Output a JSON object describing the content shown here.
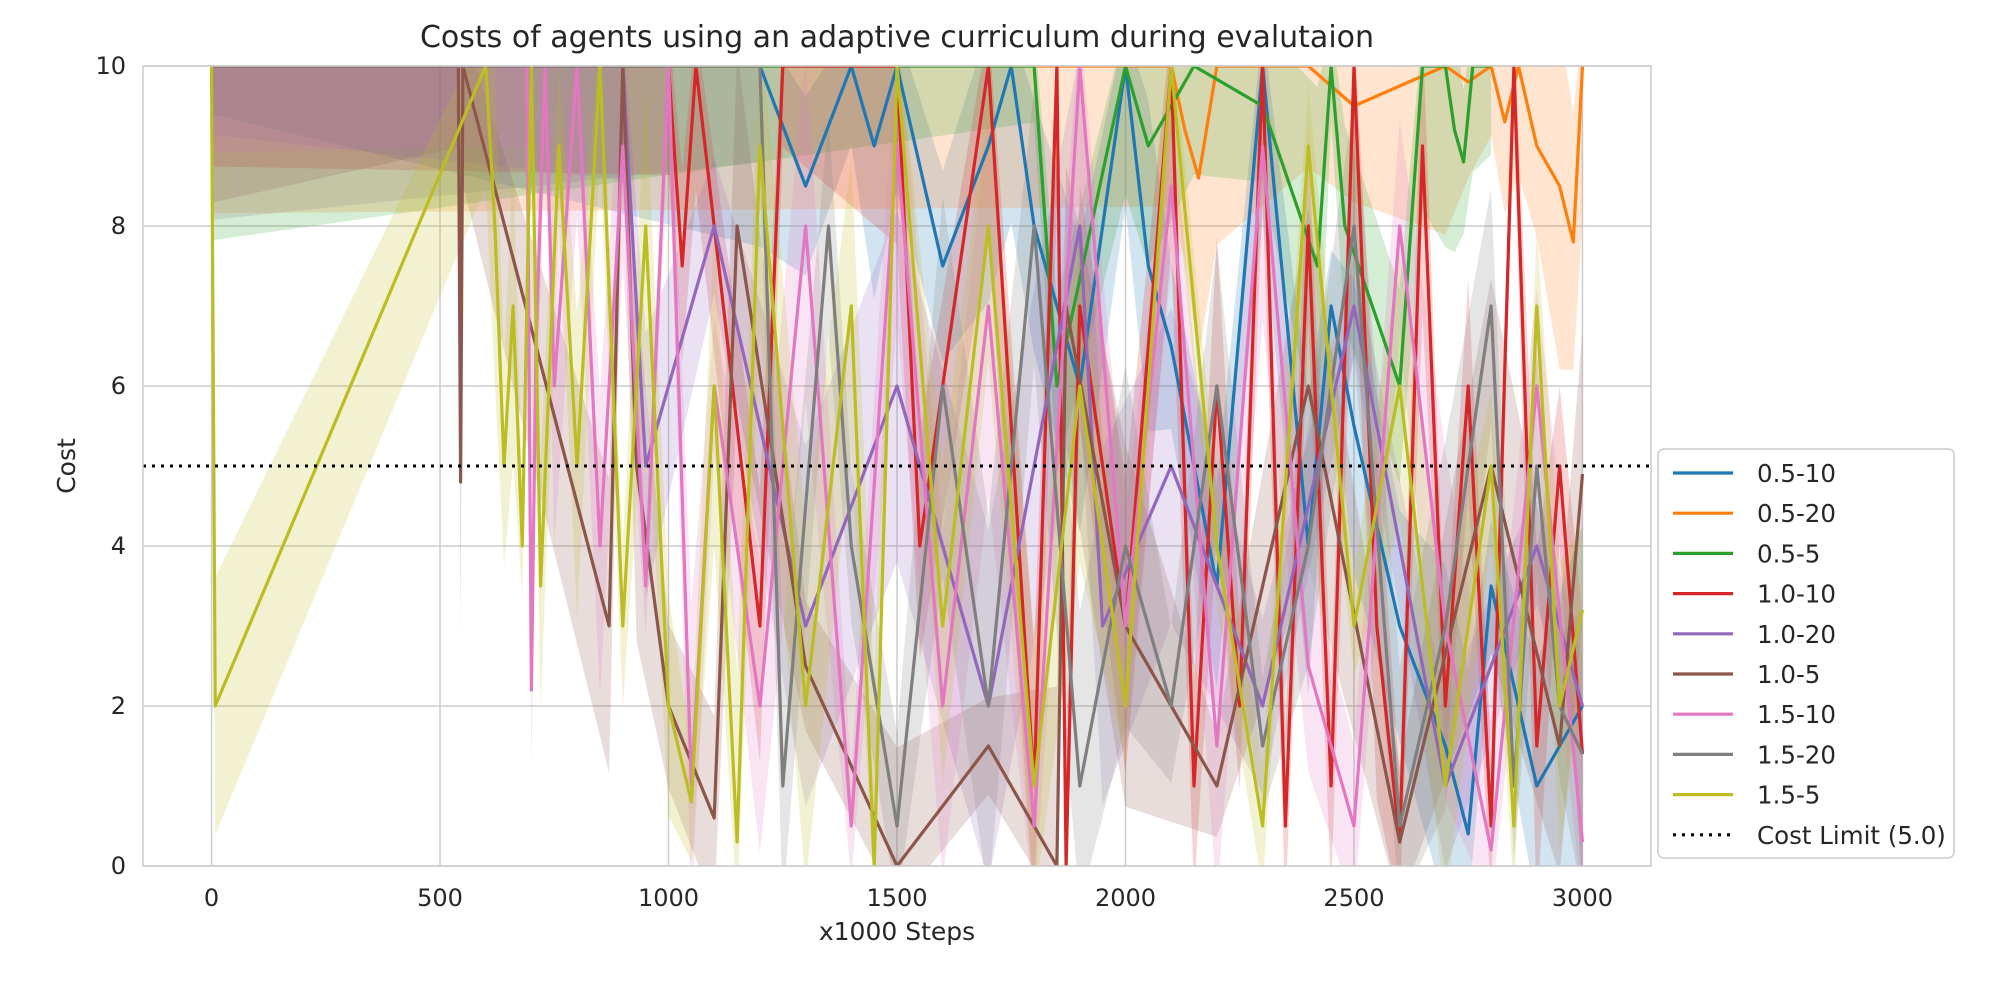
{
  "chart_data": {
    "type": "line",
    "title": "Costs of agents using an adaptive curriculum during evalutaion",
    "xlabel": "x1000 Steps",
    "ylabel": "Cost",
    "xlim": [
      -150,
      3150
    ],
    "ylim": [
      0,
      10
    ],
    "xticks": [
      0,
      500,
      1000,
      1500,
      2000,
      2500,
      3000
    ],
    "yticks": [
      0,
      2,
      4,
      6,
      8,
      10
    ],
    "grid": true,
    "legend_position": "outside-right-bottom",
    "reference_line": {
      "label": "Cost Limit (5.0)",
      "y": 5.0,
      "style": "dotted",
      "color": "#000000"
    },
    "series": [
      {
        "name": "0.5-10",
        "color": "#1f77b4",
        "x": [
          0,
          1200,
          1300,
          1400,
          1450,
          1500,
          1600,
          1700,
          1750,
          1800,
          1900,
          2000,
          2050,
          2100,
          2200,
          2300,
          2400,
          2450,
          2500,
          2600,
          2700,
          2750,
          2800,
          2900,
          3000
        ],
        "y": [
          10,
          10,
          8.5,
          10,
          9.0,
          10,
          7.5,
          9.0,
          10,
          8.0,
          6.0,
          10,
          7.5,
          6.5,
          3.5,
          10,
          4.0,
          7.0,
          5.5,
          3.0,
          1.5,
          0.4,
          3.5,
          1.0,
          2.0
        ]
      },
      {
        "name": "0.5-20",
        "color": "#ff7f0e",
        "x": [
          0,
          2100,
          2130,
          2160,
          2200,
          2400,
          2500,
          2700,
          2750,
          2800,
          2830,
          2860,
          2900,
          2950,
          2980,
          3000
        ],
        "y": [
          10,
          10,
          9.2,
          8.6,
          10,
          10,
          9.5,
          10,
          9.8,
          10,
          9.3,
          10,
          9.0,
          8.5,
          7.8,
          10
        ]
      },
      {
        "name": "0.5-5",
        "color": "#2ca02c",
        "x": [
          0,
          1800,
          1850,
          2000,
          2050,
          2150,
          2300,
          2420,
          2450,
          2480,
          2600,
          2650,
          2700,
          2720,
          2740,
          2760,
          2800
        ],
        "y": [
          10,
          10,
          6.0,
          10,
          9.0,
          10,
          9.5,
          7.5,
          10,
          8.0,
          6.0,
          10,
          10,
          9.2,
          8.8,
          10,
          10
        ]
      },
      {
        "name": "1.0-10",
        "color": "#d62728",
        "x": [
          0,
          1000,
          1030,
          1060,
          1200,
          1250,
          1500,
          1550,
          1700,
          1800,
          1850,
          1870,
          1900,
          2000,
          2100,
          2150,
          2200,
          2250,
          2300,
          2350,
          2400,
          2450,
          2500,
          2550,
          2600,
          2650,
          2700,
          2750,
          2800,
          2850,
          2900,
          2950,
          3000
        ],
        "y": [
          10,
          10,
          7.5,
          10,
          3.0,
          10,
          10,
          4.0,
          10,
          1.0,
          10,
          0.0,
          7.0,
          3.0,
          10,
          1.0,
          6.0,
          2.0,
          10,
          0.5,
          8.0,
          1.0,
          10,
          3.0,
          0.3,
          9.0,
          2.0,
          6.0,
          0.5,
          10,
          1.5,
          5.0,
          1.4
        ]
      },
      {
        "name": "1.0-20",
        "color": "#9467bd",
        "x": [
          0,
          900,
          950,
          1100,
          1300,
          1500,
          1700,
          1900,
          1950,
          2100,
          2300,
          2500,
          2700,
          2900,
          3000
        ],
        "y": [
          10,
          10,
          5.0,
          8.0,
          3.0,
          6.0,
          2.0,
          8.0,
          3.0,
          5.0,
          2.0,
          7.0,
          1.0,
          4.0,
          2.0
        ]
      },
      {
        "name": "1.0-5",
        "color": "#8c564b",
        "x": [
          0,
          540,
          545,
          550,
          870,
          900,
          930,
          1000,
          1100,
          1150,
          1300,
          1500,
          1700,
          1850,
          1870,
          2000,
          2200,
          2400,
          2600,
          2800,
          2950,
          3000
        ],
        "y": [
          10,
          10,
          4.8,
          10,
          3.0,
          10,
          5.0,
          2.0,
          0.6,
          8.0,
          2.5,
          0.0,
          1.5,
          0.0,
          7.0,
          3.0,
          1.0,
          6.0,
          0.3,
          5.0,
          1.5,
          4.9
        ]
      },
      {
        "name": "1.5-10",
        "color": "#e377c2",
        "x": [
          0,
          690,
          700,
          710,
          730,
          750,
          800,
          850,
          900,
          950,
          1000,
          1050,
          1100,
          1200,
          1300,
          1400,
          1500,
          1600,
          1700,
          1800,
          1900,
          2000,
          2100,
          2200,
          2300,
          2400,
          2500,
          2600,
          2700,
          2800,
          2900,
          3000
        ],
        "y": [
          10,
          10,
          2.2,
          6.5,
          10,
          6.0,
          10,
          4.0,
          9.0,
          3.5,
          10,
          1.0,
          6.0,
          2.0,
          8.0,
          0.5,
          9.0,
          2.0,
          7.0,
          0.5,
          10,
          3.0,
          8.5,
          1.5,
          9.0,
          2.5,
          0.5,
          8.0,
          3.0,
          0.2,
          6.0,
          0.3
        ]
      },
      {
        "name": "1.5-20",
        "color": "#7f7f7f",
        "x": [
          0,
          1200,
          1250,
          1350,
          1400,
          1500,
          1600,
          1700,
          1800,
          1900,
          2000,
          2100,
          2200,
          2300,
          2400,
          2500,
          2600,
          2700,
          2800,
          2850,
          2900,
          2950,
          3000
        ],
        "y": [
          10,
          10,
          1.0,
          8.0,
          4.0,
          0.5,
          6.0,
          2.0,
          8.0,
          1.0,
          4.0,
          2.0,
          6.0,
          1.5,
          4.0,
          8.0,
          0.5,
          3.0,
          7.0,
          1.0,
          5.0,
          2.0,
          1.4
        ]
      },
      {
        "name": "1.5-5",
        "color": "#bcbd22",
        "x": [
          0,
          8,
          600,
          620,
          640,
          660,
          680,
          700,
          720,
          760,
          800,
          850,
          900,
          950,
          1000,
          1050,
          1100,
          1150,
          1200,
          1300,
          1400,
          1450,
          1500,
          1600,
          1700,
          1800,
          1900,
          2000,
          2100,
          2200,
          2300,
          2400,
          2500,
          2600,
          2700,
          2800,
          2850,
          2900,
          2950,
          3000
        ],
        "y": [
          10,
          2.0,
          10,
          8.0,
          5.0,
          7.0,
          4.0,
          10,
          3.5,
          9.0,
          5.0,
          10,
          3.0,
          8.0,
          2.0,
          0.8,
          6.0,
          0.3,
          9.0,
          2.0,
          7.0,
          0.0,
          10,
          3.0,
          8.0,
          1.0,
          6.0,
          2.0,
          10,
          4.0,
          0.5,
          9.0,
          3.0,
          6.0,
          1.0,
          5.0,
          0.5,
          7.0,
          2.0,
          3.2
        ]
      }
    ]
  }
}
